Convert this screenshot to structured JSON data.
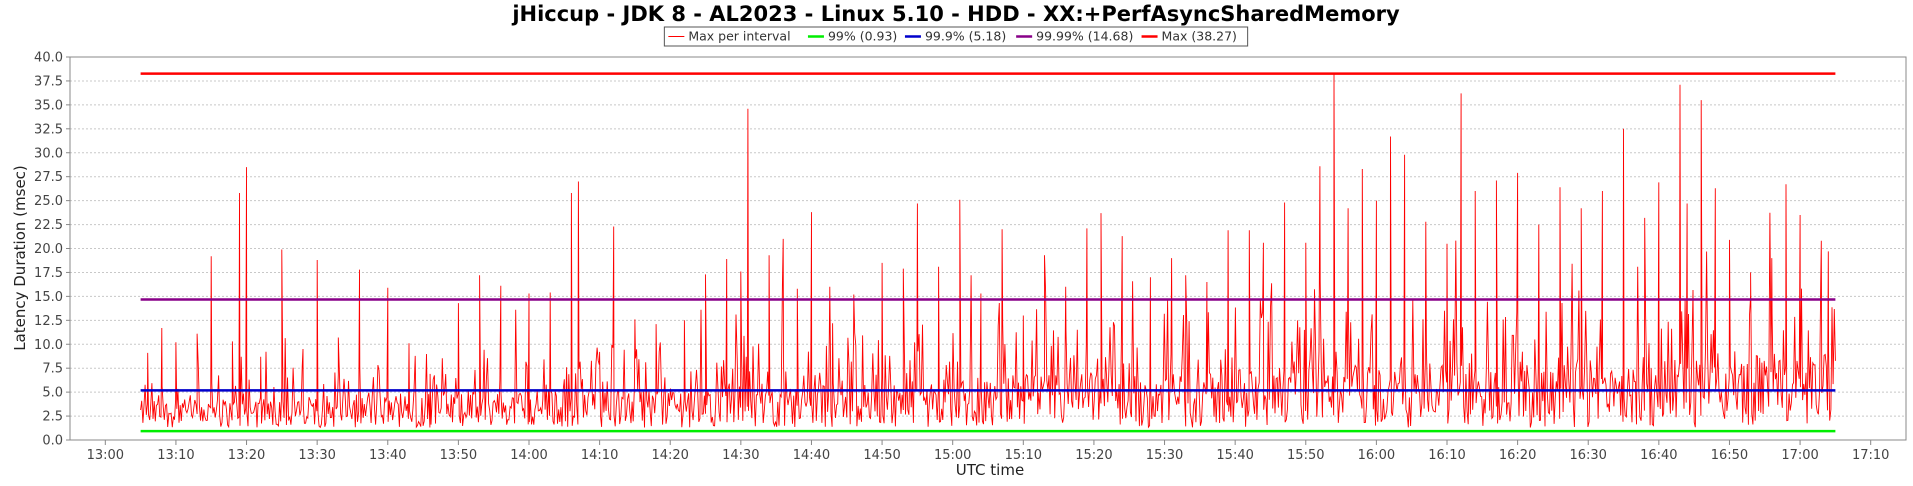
{
  "chart_data": {
    "type": "line",
    "title": "jHiccup - JDK 8 - AL2023 - Linux 5.10 - HDD - XX:+PerfAsyncSharedMemory",
    "xlabel": "UTC time",
    "ylabel": "Latency Duration (msec)",
    "ylim": [
      0,
      40
    ],
    "y_ticks": [
      "0.0",
      "2.5",
      "5.0",
      "7.5",
      "10.0",
      "12.5",
      "15.0",
      "17.5",
      "20.0",
      "22.5",
      "25.0",
      "27.5",
      "30.0",
      "32.5",
      "35.0",
      "37.5",
      "40.0"
    ],
    "x_range": [
      "12:55",
      "17:15"
    ],
    "x_ticks": [
      "13:00",
      "13:10",
      "13:20",
      "13:30",
      "13:40",
      "13:50",
      "14:00",
      "14:10",
      "14:20",
      "14:30",
      "14:40",
      "14:50",
      "15:00",
      "15:10",
      "15:20",
      "15:30",
      "15:40",
      "15:50",
      "16:00",
      "16:10",
      "16:20",
      "16:30",
      "16:40",
      "16:50",
      "17:00",
      "17:10"
    ],
    "grid": true,
    "legend_position": "top-center",
    "series": [
      {
        "name": "Max per interval",
        "color": "#ff0000",
        "style": "thin-line",
        "x_start": "13:05",
        "x_end": "17:05",
        "baseline": 1.3,
        "peaks": [
          [
            "13:06",
            9.1
          ],
          [
            "13:08",
            11.7
          ],
          [
            "13:10",
            10.2
          ],
          [
            "13:13",
            11.1
          ],
          [
            "13:15",
            19.2
          ],
          [
            "13:18",
            10.3
          ],
          [
            "13:19",
            25.8
          ],
          [
            "13:20",
            28.5
          ],
          [
            "13:22",
            8.7
          ],
          [
            "13:25",
            19.9
          ],
          [
            "13:28",
            9.5
          ],
          [
            "13:30",
            18.8
          ],
          [
            "13:33",
            10.7
          ],
          [
            "13:36",
            17.8
          ],
          [
            "13:40",
            15.9
          ],
          [
            "13:43",
            10.1
          ],
          [
            "13:46",
            6.9
          ],
          [
            "13:50",
            14.3
          ],
          [
            "13:53",
            17.2
          ],
          [
            "13:56",
            16.1
          ],
          [
            "14:00",
            15.3
          ],
          [
            "14:03",
            15.4
          ],
          [
            "14:06",
            25.8
          ],
          [
            "14:07",
            27.0
          ],
          [
            "14:10",
            9.2
          ],
          [
            "14:12",
            22.3
          ],
          [
            "14:15",
            12.6
          ],
          [
            "14:18",
            12.1
          ],
          [
            "14:22",
            12.5
          ],
          [
            "14:25",
            17.3
          ],
          [
            "14:28",
            18.9
          ],
          [
            "14:30",
            17.6
          ],
          [
            "14:31",
            34.6
          ],
          [
            "14:34",
            19.3
          ],
          [
            "14:36",
            21.0
          ],
          [
            "14:38",
            15.8
          ],
          [
            "14:40",
            23.8
          ],
          [
            "14:43",
            12.2
          ],
          [
            "14:46",
            15.2
          ],
          [
            "14:50",
            18.5
          ],
          [
            "14:53",
            17.9
          ],
          [
            "14:55",
            24.7
          ],
          [
            "14:58",
            18.1
          ],
          [
            "15:01",
            25.1
          ],
          [
            "15:04",
            15.3
          ],
          [
            "15:07",
            22.0
          ],
          [
            "15:10",
            13.0
          ],
          [
            "15:13",
            19.3
          ],
          [
            "15:16",
            16.0
          ],
          [
            "15:19",
            22.1
          ],
          [
            "15:21",
            23.7
          ],
          [
            "15:24",
            21.3
          ],
          [
            "15:28",
            17.0
          ],
          [
            "15:31",
            19.0
          ],
          [
            "15:33",
            17.2
          ],
          [
            "15:36",
            16.5
          ],
          [
            "15:39",
            21.9
          ],
          [
            "15:42",
            21.9
          ],
          [
            "15:44",
            20.6
          ],
          [
            "15:47",
            24.8
          ],
          [
            "15:50",
            20.6
          ],
          [
            "15:52",
            28.6
          ],
          [
            "15:54",
            38.3
          ],
          [
            "15:56",
            24.2
          ],
          [
            "15:58",
            28.3
          ],
          [
            "16:00",
            25.0
          ],
          [
            "16:02",
            31.7
          ],
          [
            "16:04",
            29.8
          ],
          [
            "16:07",
            22.8
          ],
          [
            "16:10",
            20.5
          ],
          [
            "16:12",
            36.2
          ],
          [
            "16:14",
            26.0
          ],
          [
            "16:17",
            27.1
          ],
          [
            "16:20",
            27.9
          ],
          [
            "16:23",
            22.5
          ],
          [
            "16:26",
            26.4
          ],
          [
            "16:29",
            24.2
          ],
          [
            "16:32",
            26.0
          ],
          [
            "16:35",
            32.5
          ],
          [
            "16:38",
            23.2
          ],
          [
            "16:40",
            26.9
          ],
          [
            "16:43",
            37.1
          ],
          [
            "16:44",
            24.7
          ],
          [
            "16:46",
            35.5
          ],
          [
            "16:48",
            26.3
          ],
          [
            "16:50",
            20.9
          ],
          [
            "16:53",
            17.5
          ],
          [
            "16:56",
            19.0
          ],
          [
            "16:58",
            26.7
          ],
          [
            "17:00",
            23.5
          ],
          [
            "17:03",
            20.8
          ],
          [
            "17:04",
            19.7
          ]
        ]
      },
      {
        "name": "99% (0.93)",
        "color": "#00ee00",
        "constant": 0.93,
        "x_start": "13:05",
        "x_end": "17:05"
      },
      {
        "name": "99.9% (5.18)",
        "color": "#0000cc",
        "constant": 5.18,
        "x_start": "13:05",
        "x_end": "17:05"
      },
      {
        "name": "99.99% (14.68)",
        "color": "#880088",
        "constant": 14.68,
        "x_start": "13:05",
        "x_end": "17:05"
      },
      {
        "name": "Max (38.27)",
        "color": "#ff0000",
        "constant": 38.27,
        "x_start": "13:05",
        "x_end": "17:05"
      }
    ]
  }
}
